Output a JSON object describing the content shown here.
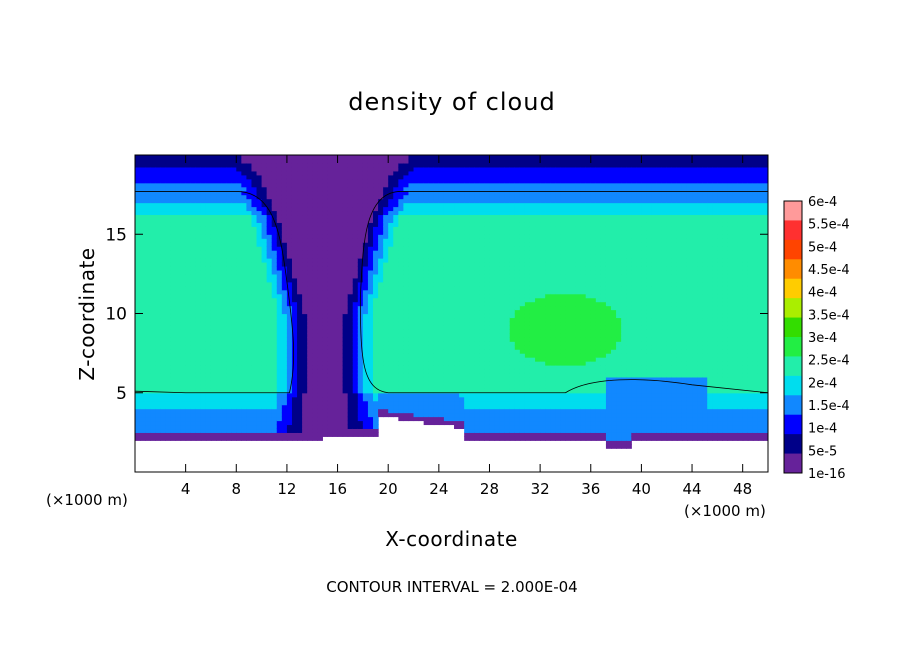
{
  "chart_data": {
    "type": "heatmap",
    "title": "density of cloud",
    "xlabel": "X-coordinate",
    "ylabel": "Z-coordinate",
    "x_unit": "(×1000 m)",
    "footer": "CONTOUR INTERVAL = 2.000E-04",
    "xlim": [
      0,
      50
    ],
    "ylim": [
      0,
      20
    ],
    "x_ticks": [
      4,
      8,
      12,
      16,
      20,
      24,
      28,
      32,
      36,
      40,
      44,
      48
    ],
    "y_ticks": [
      5,
      10,
      15
    ],
    "colorbar": {
      "labels": [
        "6e-4",
        "5.5e-4",
        "5e-4",
        "4.5e-4",
        "4e-4",
        "3.5e-4",
        "3e-4",
        "2.5e-4",
        "2e-4",
        "1.5e-4",
        "1e-4",
        "5e-5",
        "1e-16"
      ],
      "colors": [
        "#ff9a9a",
        "#ff3030",
        "#ff4400",
        "#ff8c00",
        "#ffcc00",
        "#aaee00",
        "#33dd00",
        "#22ee44",
        "#22eeaa",
        "#00ddee",
        "#1188ff",
        "#0000ff",
        "#000088",
        "#66229a"
      ]
    },
    "field": {
      "cloud_base_km": 2.0,
      "cloud_layer_top_km": 5.0,
      "cloud_top_km": 17.7,
      "max_density": 0.0003,
      "max_density_region_km": {
        "x": [
          28,
          40
        ],
        "z": [
          8,
          10
        ]
      },
      "clear_column_center_x_km": 15.0,
      "clear_column_width_km": 3.0
    }
  }
}
